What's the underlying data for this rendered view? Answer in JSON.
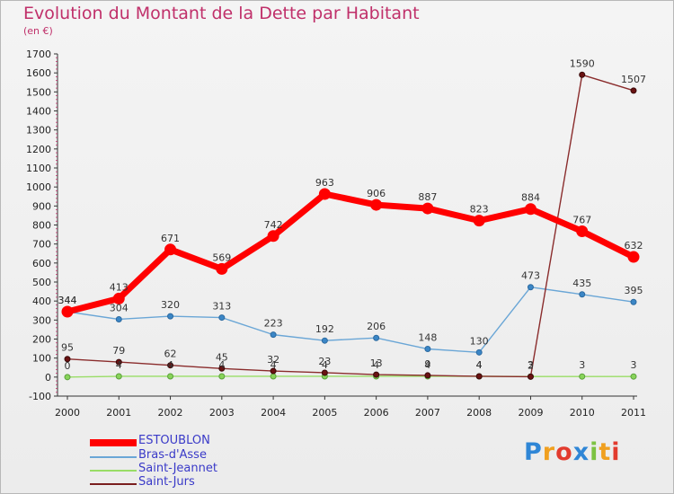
{
  "header": {
    "title": "Evolution du Montant de la Dette par Habitant",
    "subtitle": "(en €)"
  },
  "logo": {
    "text": "Proxiti"
  },
  "chart_data": {
    "type": "line",
    "title": "Evolution du Montant de la Dette par Habitant",
    "subtitle": "(en €)",
    "xlabel": "",
    "ylabel": "",
    "x": [
      "2000",
      "2001",
      "2002",
      "2003",
      "2004",
      "2005",
      "2006",
      "2007",
      "2008",
      "2009",
      "2010",
      "2011"
    ],
    "ylim": [
      -100,
      1700
    ],
    "yticks": [
      -100,
      0,
      100,
      200,
      300,
      400,
      500,
      600,
      700,
      800,
      900,
      1000,
      1100,
      1200,
      1300,
      1400,
      1500,
      1600,
      1700
    ],
    "grid": false,
    "legend_position": "bottom-left",
    "series": [
      {
        "name": "ESTOUBLON",
        "color": "#ff0000",
        "values": [
          344,
          413,
          671,
          569,
          742,
          963,
          906,
          887,
          823,
          884,
          767,
          632
        ]
      },
      {
        "name": "Bras-d'Asse",
        "color": "#6aa6d6",
        "values": [
          344,
          304,
          320,
          313,
          223,
          192,
          206,
          148,
          130,
          473,
          435,
          395
        ]
      },
      {
        "name": "Saint-Jeannet",
        "color": "#99dd66",
        "values": [
          0,
          4,
          4,
          4,
          4,
          4,
          4,
          4,
          4,
          3,
          3,
          3
        ]
      },
      {
        "name": "Saint-Jurs",
        "color": "#7a1e1e",
        "values": [
          95,
          79,
          62,
          45,
          32,
          23,
          13,
          9,
          4,
          2,
          1590,
          1507
        ]
      }
    ]
  }
}
